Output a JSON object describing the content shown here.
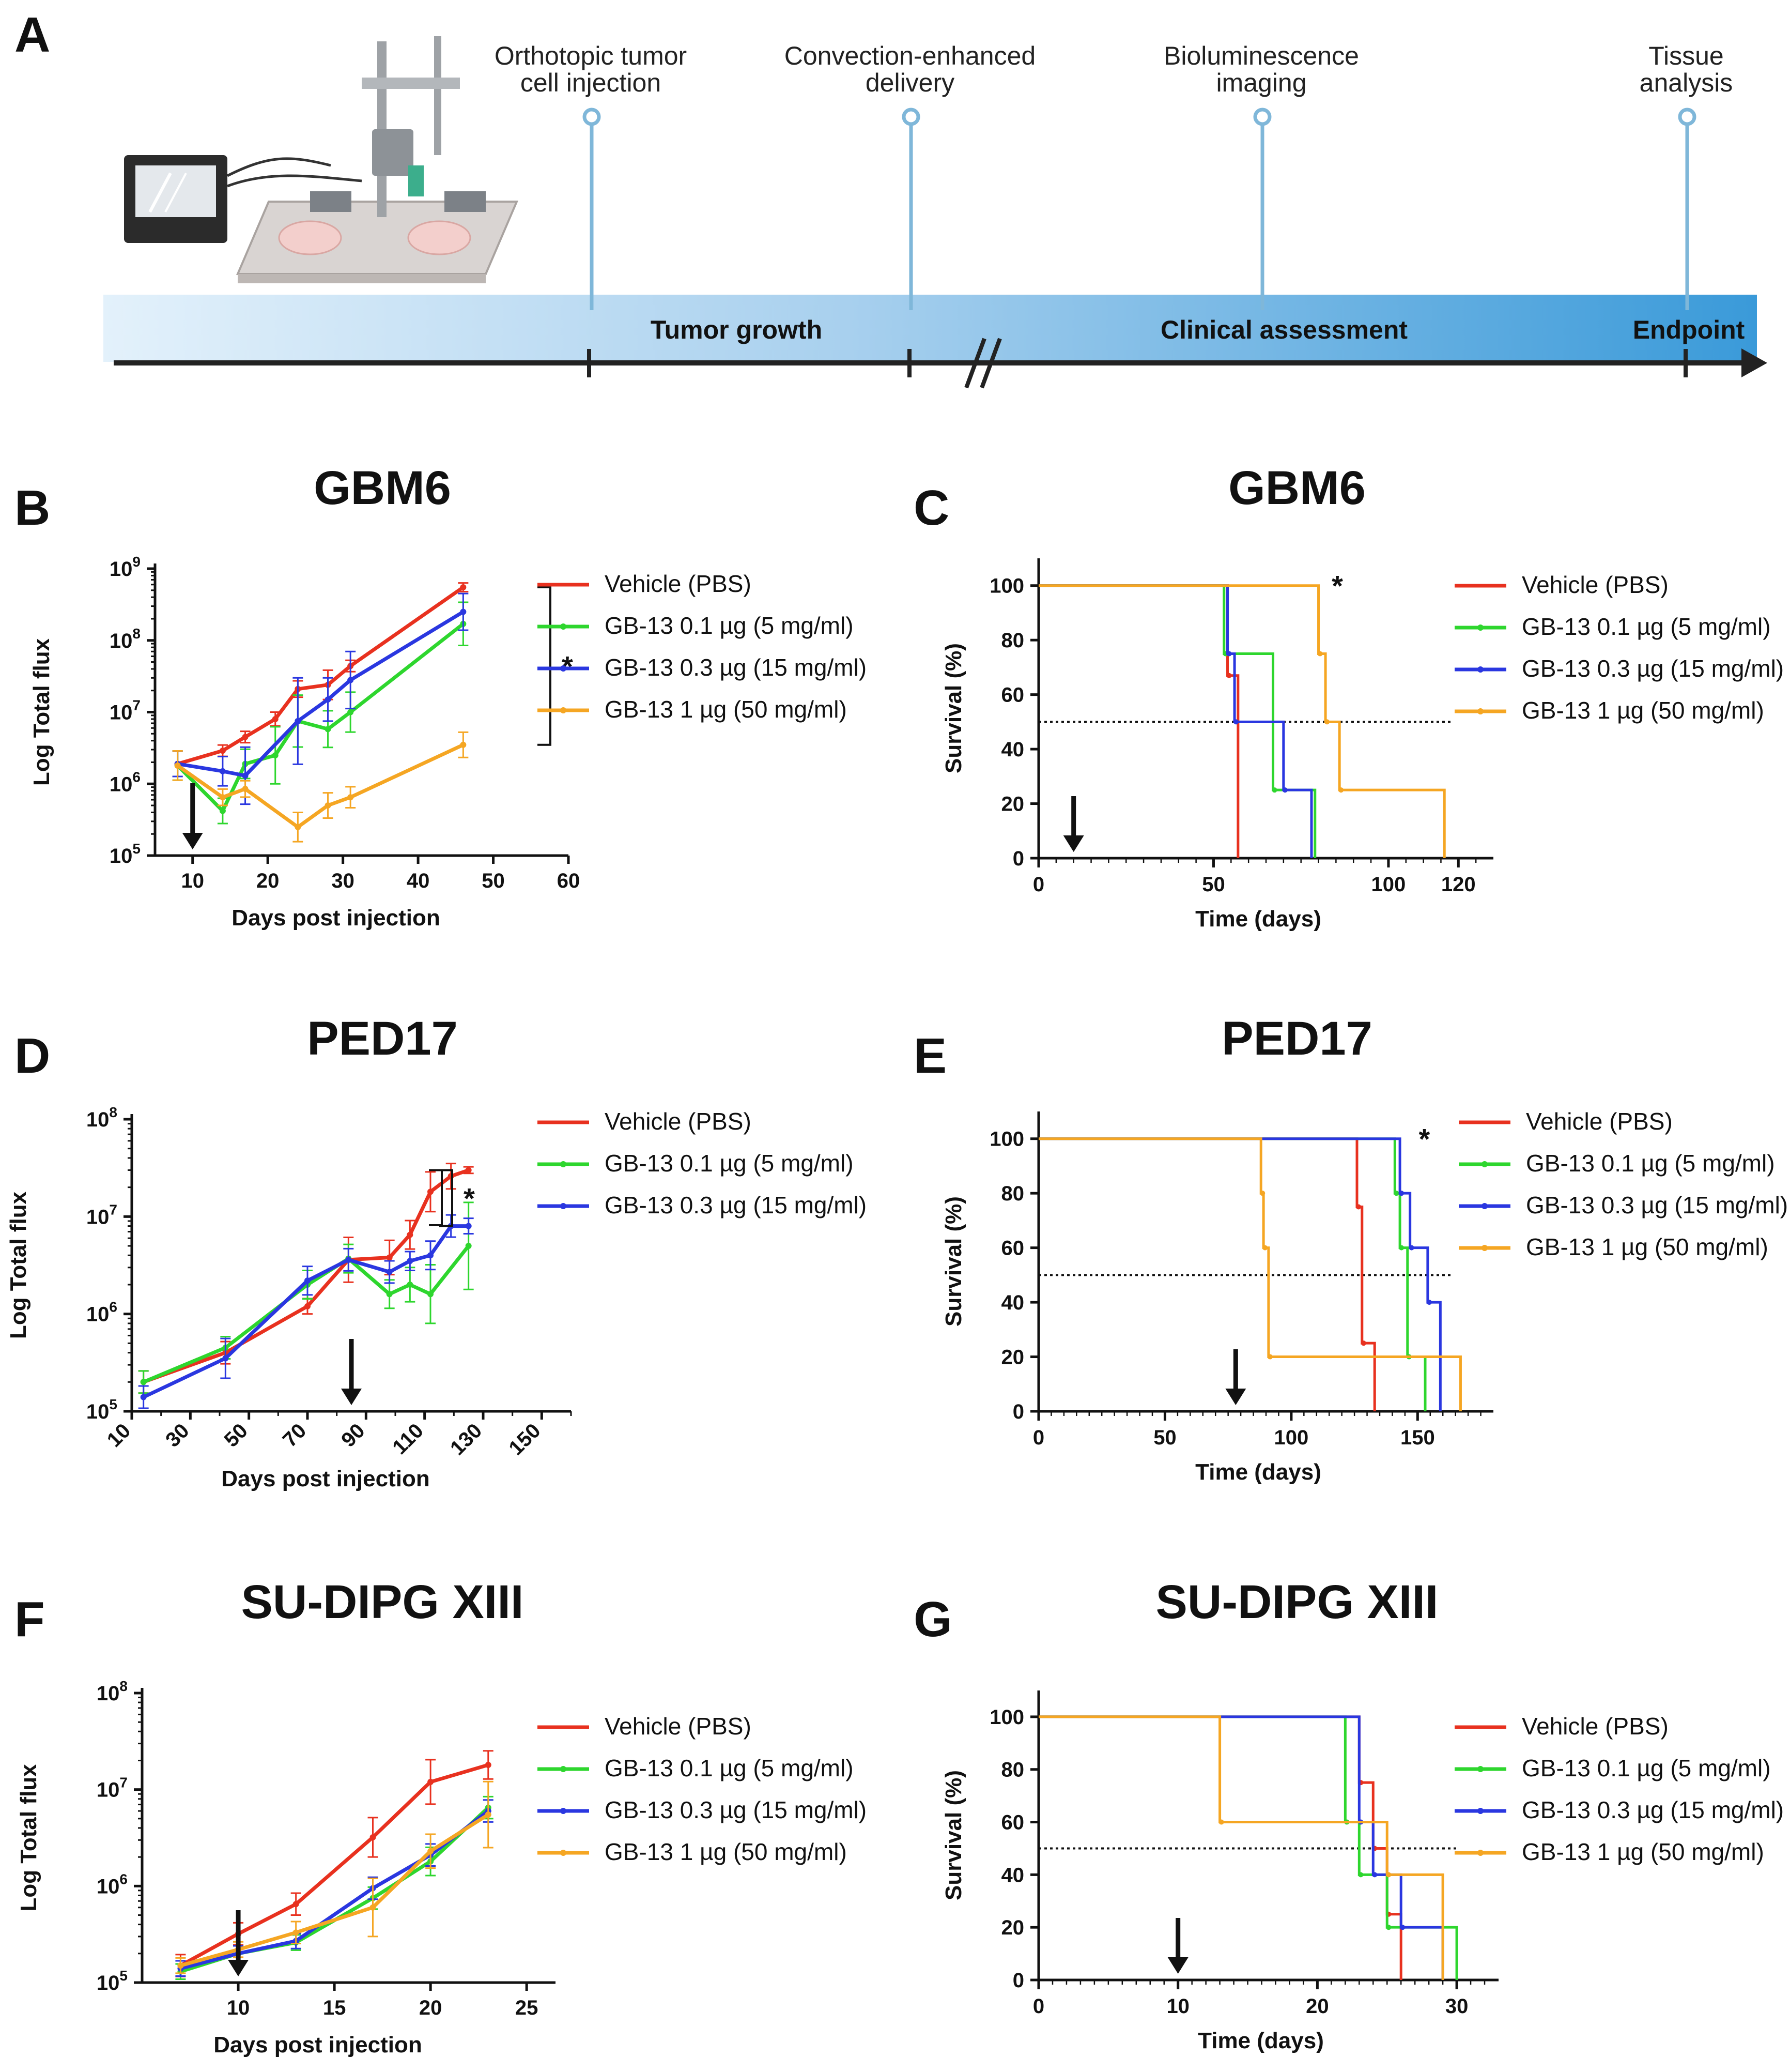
{
  "figure": {
    "panel_a": {
      "letter": "A",
      "events": [
        {
          "label_line1": "Orthotopic tumor",
          "label_line2": "cell injection"
        },
        {
          "label_line1": "Convection-enhanced",
          "label_line2": "delivery"
        },
        {
          "label_line1": "Bioluminescence",
          "label_line2": "imaging"
        },
        {
          "label_line1": "Tissue",
          "label_line2": "analysis"
        }
      ],
      "phases": [
        "Tumor growth",
        "Clinical assessment",
        "Endpoint"
      ],
      "colors": {
        "bar_light": "#e3f1fb",
        "bar_dark": "#3a9ad9",
        "marker": "#7fb7d9",
        "axis": "#222222"
      }
    }
  },
  "chart_data": [
    {
      "id": "B",
      "letter": "B",
      "title": "GBM6",
      "type": "line",
      "yscale": "log",
      "xlabel": "Days post injection",
      "ylabel": "Log Total flux",
      "xlim": [
        5,
        60
      ],
      "xticks": [
        10,
        20,
        30,
        40,
        50,
        60
      ],
      "ylim_exp": [
        5,
        9
      ],
      "yticks_exp": [
        5,
        6,
        7,
        8,
        9
      ],
      "ytick_base": "10",
      "treatment_day": 10,
      "significance": {
        "label": "*",
        "from_series": 0,
        "to_series": 3
      },
      "series": [
        {
          "name": "Vehicle (PBS)",
          "color": "#e8311f",
          "x": [
            8,
            14,
            17,
            21,
            24,
            28,
            31,
            46
          ],
          "y": [
            1900000.0,
            2900000.0,
            4500000.0,
            8000000.0,
            21000000.0,
            24000000.0,
            44000000.0,
            550000000.0
          ],
          "err_factor": [
            1.5,
            1.2,
            1.2,
            1.25,
            1.3,
            1.6,
            1.2,
            1.15
          ]
        },
        {
          "name": "GB-13 0.1 µg (5 mg/ml)",
          "color": "#2ed62e",
          "x": [
            8,
            14,
            17,
            21,
            24,
            28,
            31,
            46
          ],
          "y": [
            1800000.0,
            420000.0,
            1900000.0,
            2500000.0,
            7500000.0,
            5800000.0,
            10000000.0,
            170000000.0
          ],
          "err_factor": [
            1.6,
            1.5,
            1.6,
            2.5,
            2.3,
            1.8,
            1.9,
            2.0
          ]
        },
        {
          "name": "GB-13 0.3 µg (15 mg/ml)",
          "color": "#2a37e0",
          "x": [
            8,
            14,
            17,
            24,
            28,
            31,
            46
          ],
          "y": [
            1900000.0,
            1500000.0,
            1300000.0,
            7500000.0,
            15000000.0,
            28000000.0,
            250000000.0
          ],
          "err_factor": [
            1.5,
            1.6,
            2.5,
            4.0,
            2.0,
            2.5,
            1.8
          ]
        },
        {
          "name": "GB-13 1 µg (50 mg/ml)",
          "color": "#f5a623",
          "x": [
            8,
            14,
            17,
            24,
            28,
            31,
            46
          ],
          "y": [
            1800000.0,
            650000.0,
            850000.0,
            250000.0,
            500000.0,
            650000.0,
            3500000.0
          ],
          "err_factor": [
            1.6,
            1.3,
            1.3,
            1.6,
            1.5,
            1.4,
            1.5
          ]
        }
      ]
    },
    {
      "id": "C",
      "letter": "C",
      "title": "GBM6",
      "type": "survival",
      "xlabel": "Time (days)",
      "ylabel": "Survival (%)",
      "xlim": [
        0,
        130
      ],
      "xticks": [
        0,
        50,
        100,
        120
      ],
      "ylim": [
        0,
        110
      ],
      "yticks": [
        0,
        20,
        40,
        60,
        80,
        100
      ],
      "median_line": 50,
      "treatment_day": 10,
      "significance": {
        "label": "*",
        "x": 82
      },
      "series": [
        {
          "name": "Vehicle (PBS)",
          "color": "#e8311f",
          "steps": [
            [
              0,
              100
            ],
            [
              54,
              67
            ],
            [
              57,
              0
            ]
          ]
        },
        {
          "name": "GB-13 0.1 µg (5 mg/ml)",
          "color": "#2ed62e",
          "steps": [
            [
              0,
              100
            ],
            [
              53,
              75
            ],
            [
              67,
              25
            ],
            [
              79,
              0
            ]
          ]
        },
        {
          "name": "GB-13 0.3 µg (15 mg/ml)",
          "color": "#2a37e0",
          "steps": [
            [
              0,
              100
            ],
            [
              54,
              75
            ],
            [
              56,
              50
            ],
            [
              70,
              25
            ],
            [
              78,
              0
            ]
          ]
        },
        {
          "name": "GB-13 1 µg (50 mg/ml)",
          "color": "#f5a623",
          "steps": [
            [
              0,
              100
            ],
            [
              80,
              75
            ],
            [
              82,
              50
            ],
            [
              86,
              25
            ],
            [
              116,
              0
            ]
          ]
        }
      ]
    },
    {
      "id": "D",
      "letter": "D",
      "title": "PED17",
      "type": "line",
      "yscale": "log",
      "xlabel": "Days post injection",
      "ylabel": "Log Total flux",
      "xlim": [
        10,
        160
      ],
      "xticks": [
        10,
        30,
        50,
        70,
        90,
        110,
        130,
        150
      ],
      "ylim_exp": [
        5,
        8
      ],
      "yticks_exp": [
        5,
        6,
        7,
        8
      ],
      "ytick_base": "10",
      "treatment_day": 85,
      "significance": {
        "label": "*",
        "from_series": 0,
        "to_series": 2
      },
      "series": [
        {
          "name": "Vehicle (PBS)",
          "color": "#e8311f",
          "x": [
            14,
            42,
            70,
            84,
            98,
            105,
            112,
            119,
            125
          ],
          "y": [
            200000.0,
            400000.0,
            1200000.0,
            3600000.0,
            3800000.0,
            6500000.0,
            18000000.0,
            26000000.0,
            30000000.0
          ],
          "err_factor": [
            1.3,
            1.3,
            1.2,
            1.7,
            1.5,
            1.4,
            1.6,
            1.35,
            1.08
          ]
        },
        {
          "name": "GB-13 0.1 µg (5 mg/ml)",
          "color": "#2ed62e",
          "x": [
            14,
            42,
            70,
            84,
            98,
            105,
            112,
            125
          ],
          "y": [
            200000.0,
            450000.0,
            2000000.0,
            3700000.0,
            1600000.0,
            2000000.0,
            1600000.0,
            5000000.0
          ],
          "err_factor": [
            1.3,
            1.3,
            1.4,
            1.4,
            1.4,
            1.5,
            2.0,
            2.8
          ]
        },
        {
          "name": "GB-13 0.3 µg (15 mg/ml)",
          "color": "#2a37e0",
          "x": [
            14,
            42,
            70,
            84,
            98,
            105,
            112,
            119,
            125
          ],
          "y": [
            140000.0,
            350000.0,
            2200000.0,
            3600000.0,
            2700000.0,
            3500000.0,
            4000000.0,
            8000000.0,
            8000000.0
          ],
          "err_factor": [
            1.3,
            1.6,
            1.4,
            1.3,
            1.3,
            1.25,
            1.4,
            1.3,
            1.2
          ]
        }
      ]
    },
    {
      "id": "E",
      "letter": "E",
      "title": "PED17",
      "type": "survival",
      "xlabel": "Time (days)",
      "ylabel": "Survival (%)",
      "xlim": [
        0,
        180
      ],
      "xticks": [
        0,
        50,
        100,
        150
      ],
      "ylim": [
        0,
        110
      ],
      "yticks": [
        0,
        20,
        40,
        60,
        80,
        100
      ],
      "median_line": 50,
      "treatment_day": 78,
      "significance": {
        "label": "*",
        "x": 148
      },
      "series": [
        {
          "name": "Vehicle (PBS)",
          "color": "#e8311f",
          "steps": [
            [
              0,
              100
            ],
            [
              126,
              75
            ],
            [
              128,
              25
            ],
            [
              133,
              0
            ]
          ]
        },
        {
          "name": "GB-13 0.1 µg (5 mg/ml)",
          "color": "#2ed62e",
          "steps": [
            [
              0,
              100
            ],
            [
              141,
              80
            ],
            [
              143,
              60
            ],
            [
              146,
              20
            ],
            [
              153,
              0
            ]
          ]
        },
        {
          "name": "GB-13 0.3 µg (15 mg/ml)",
          "color": "#2a37e0",
          "steps": [
            [
              0,
              100
            ],
            [
              143,
              80
            ],
            [
              147,
              60
            ],
            [
              154,
              40
            ],
            [
              159,
              0
            ]
          ]
        },
        {
          "name": "GB-13 1 µg (50 mg/ml)",
          "color": "#f5a623",
          "steps": [
            [
              0,
              100
            ],
            [
              88,
              80
            ],
            [
              89,
              60
            ],
            [
              91,
              20
            ],
            [
              167,
              0
            ]
          ]
        }
      ]
    },
    {
      "id": "F",
      "letter": "F",
      "title": "SU-DIPG XIII",
      "type": "line",
      "yscale": "log",
      "xlabel": "Days post injection",
      "ylabel": "Log Total flux",
      "xlim": [
        5,
        26.5
      ],
      "xticks": [
        10,
        15,
        20,
        25
      ],
      "ylim_exp": [
        5,
        8
      ],
      "yticks_exp": [
        5,
        6,
        7,
        8
      ],
      "ytick_base": "10",
      "treatment_day": 10,
      "series": [
        {
          "name": "Vehicle (PBS)",
          "color": "#e8311f",
          "x": [
            7,
            10,
            13,
            17,
            20,
            23
          ],
          "y": [
            150000.0,
            320000.0,
            650000.0,
            3200000.0,
            12000000.0,
            18000000.0
          ],
          "err_factor": [
            1.3,
            1.3,
            1.3,
            1.6,
            1.7,
            1.4
          ]
        },
        {
          "name": "GB-13 0.1 µg (5 mg/ml)",
          "color": "#2ed62e",
          "x": [
            7,
            10,
            13,
            17,
            20,
            23
          ],
          "y": [
            130000.0,
            200000.0,
            260000.0,
            750000.0,
            1800000.0,
            6500000.0
          ],
          "err_factor": [
            1.2,
            1.2,
            1.2,
            1.3,
            1.4,
            1.3
          ]
        },
        {
          "name": "GB-13 0.3 µg (15 mg/ml)",
          "color": "#2a37e0",
          "x": [
            7,
            10,
            13,
            17,
            20,
            23
          ],
          "y": [
            140000.0,
            200000.0,
            270000.0,
            950000.0,
            2100000.0,
            6000000.0
          ],
          "err_factor": [
            1.2,
            1.2,
            1.2,
            1.3,
            1.3,
            1.3
          ]
        },
        {
          "name": "GB-13 1 µg (50 mg/ml)",
          "color": "#f5a623",
          "x": [
            7,
            10,
            13,
            17,
            20,
            23
          ],
          "y": [
            150000.0,
            220000.0,
            330000.0,
            600000.0,
            2300000.0,
            5500000.0
          ],
          "err_factor": [
            1.2,
            1.2,
            1.3,
            2.0,
            1.5,
            2.2
          ]
        }
      ]
    },
    {
      "id": "G",
      "letter": "G",
      "title": "SU-DIPG XIII",
      "type": "survival",
      "xlabel": "Time (days)",
      "ylabel": "Survival (%)",
      "xlim": [
        0,
        33
      ],
      "xticks": [
        0,
        10,
        20,
        30
      ],
      "ylim": [
        0,
        110
      ],
      "yticks": [
        0,
        20,
        40,
        60,
        80,
        100
      ],
      "median_line": 50,
      "treatment_day": 10,
      "series": [
        {
          "name": "Vehicle (PBS)",
          "color": "#e8311f",
          "steps": [
            [
              0,
              100
            ],
            [
              23,
              75
            ],
            [
              24,
              50
            ],
            [
              25,
              25
            ],
            [
              26,
              0
            ]
          ]
        },
        {
          "name": "GB-13 0.1 µg (5 mg/ml)",
          "color": "#2ed62e",
          "steps": [
            [
              0,
              100
            ],
            [
              22,
              60
            ],
            [
              23,
              40
            ],
            [
              25,
              20
            ],
            [
              30,
              0
            ]
          ]
        },
        {
          "name": "GB-13 0.3 µg (15 mg/ml)",
          "color": "#2a37e0",
          "steps": [
            [
              0,
              100
            ],
            [
              23,
              60
            ],
            [
              24,
              40
            ],
            [
              26,
              20
            ],
            [
              29,
              0
            ]
          ]
        },
        {
          "name": "GB-13 1 µg (50 mg/ml)",
          "color": "#f5a623",
          "steps": [
            [
              0,
              100
            ],
            [
              13,
              60
            ],
            [
              25,
              40
            ],
            [
              29,
              0
            ]
          ]
        }
      ]
    }
  ]
}
